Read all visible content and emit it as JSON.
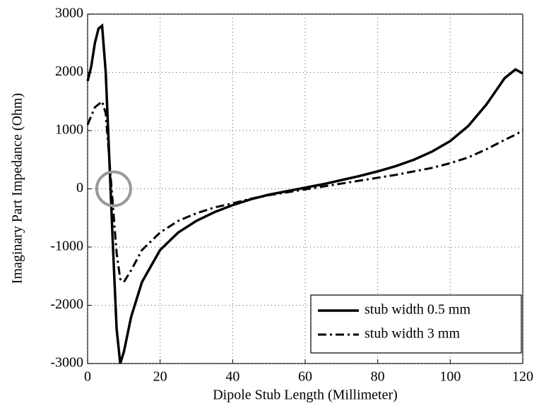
{
  "chart_data": {
    "type": "line",
    "x_label": "Dipole Stub Length (Millimeter)",
    "y_label": "Imaginary Part Impedance (Ohm)",
    "x": [
      0,
      1,
      2,
      3,
      4,
      5,
      6,
      7,
      8,
      9,
      10,
      12,
      15,
      20,
      25,
      30,
      35,
      40,
      45,
      50,
      55,
      60,
      65,
      70,
      75,
      80,
      85,
      90,
      95,
      100,
      105,
      110,
      115,
      118,
      120
    ],
    "series": [
      {
        "name": "stub width 0.5 mm",
        "color": "#000000",
        "style": "solid",
        "values": [
          1850,
          2100,
          2500,
          2750,
          2800,
          2000,
          500,
          -1000,
          -2400,
          -3000,
          -2800,
          -2200,
          -1600,
          -1050,
          -750,
          -550,
          -400,
          -280,
          -180,
          -100,
          -40,
          20,
          80,
          150,
          220,
          300,
          390,
          500,
          640,
          820,
          1080,
          1450,
          1900,
          2050,
          1980
        ]
      },
      {
        "name": "stub width 3 mm",
        "color": "#000000",
        "style": "dash-dot",
        "values": [
          1100,
          1250,
          1400,
          1450,
          1500,
          1300,
          500,
          -300,
          -1100,
          -1550,
          -1600,
          -1400,
          -1050,
          -750,
          -550,
          -420,
          -320,
          -250,
          -170,
          -110,
          -60,
          -10,
          40,
          90,
          140,
          190,
          240,
          300,
          360,
          440,
          540,
          680,
          840,
          930,
          1000
        ]
      }
    ],
    "xlim": [
      0,
      120
    ],
    "xticks": [
      0,
      20,
      40,
      60,
      80,
      100,
      120
    ],
    "ylim": [
      -3000,
      3000
    ],
    "yticks": [
      -3000,
      -2000,
      -1000,
      0,
      1000,
      2000,
      3000
    ],
    "grid": true,
    "legend": "lower-right"
  }
}
